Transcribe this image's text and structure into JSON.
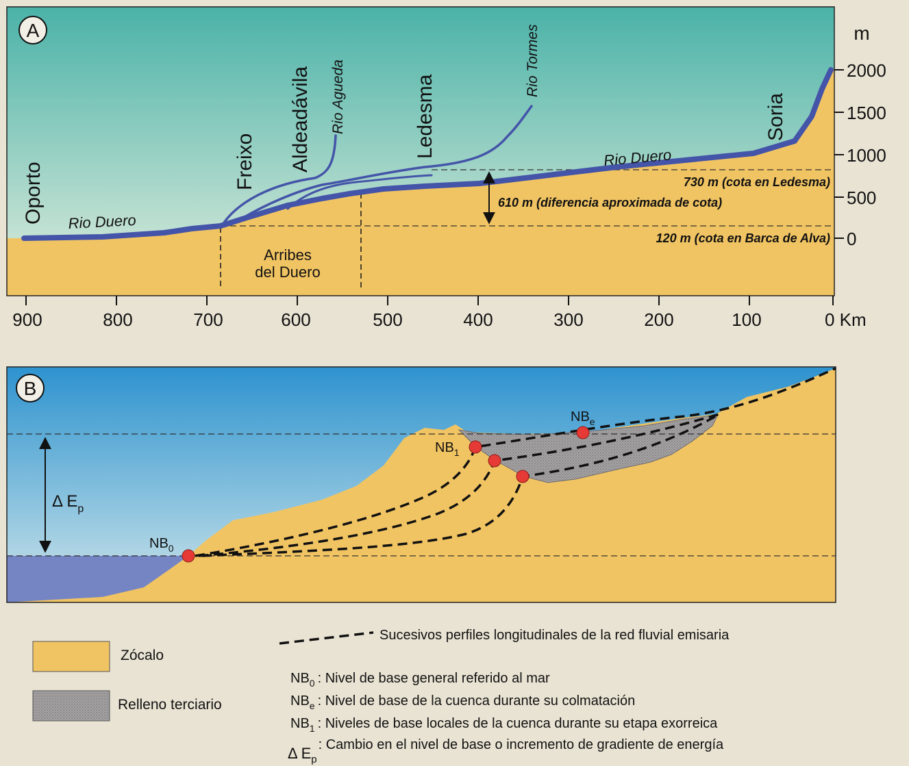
{
  "panel_a": {
    "label": "A",
    "unit": "m",
    "y_ticks": [
      "2000",
      "1500",
      "1000",
      "500",
      "0"
    ],
    "x_ticks": [
      "900",
      "800",
      "700",
      "600",
      "500",
      "400",
      "300",
      "200",
      "100",
      "0 Km"
    ],
    "places": {
      "oporto": "Oporto",
      "freixo": "Freixo",
      "aldeadavila": "Aldeadávila",
      "ledesma": "Ledesma",
      "soria": "Soria"
    },
    "rivers": {
      "duero_left": "Rio Duero",
      "duero_right": "Rio Duero",
      "agueda": "Rio Agueda",
      "tormes": "Rio Tormes"
    },
    "annotations": {
      "cota_ledesma": "730 m (cota en Ledesma)",
      "diferencia": "610 m (diferencia aproximada de cota)",
      "cota_barca": "120 m (cota en Barca de Alva)",
      "arribes_1": "Arribes",
      "arribes_2": "del Duero"
    }
  },
  "panel_b": {
    "label": "B",
    "delta": "Δ E",
    "delta_sub": "p",
    "nb0": "NB",
    "nb0_sub": "0",
    "nb1": "NB",
    "nb1_sub": "1",
    "nbe": "NB",
    "nbe_sub": "e"
  },
  "legend": {
    "zocalo": "Zócalo",
    "relleno": "Relleno terciario",
    "dashed": "Sucesivos perfiles longitudinales de la red fluvial emisaria",
    "nb0_sym": "NB",
    "nb0_sub": "0",
    "nb0_text": ": Nivel de base general referido al mar",
    "nbe_sym": "NB",
    "nbe_sub": "e",
    "nbe_text": ": Nivel de base de la cuenca durante su colmatación",
    "nb1_sym": "NB",
    "nb1_sub": "1",
    "nb1_text": ": Niveles de base locales de la cuenca durante su etapa exorreica",
    "dep_sym": "Δ E",
    "dep_sub": "p",
    "dep_text": ": Cambio en el nivel de base o incremento de gradiente de energía"
  },
  "colors": {
    "sky_a_top": "#4bb2a8",
    "sky_a_bottom": "#e2eede",
    "ground": "#f1c463",
    "river": "#4454a8",
    "sky_b_top": "#2e93cf",
    "sky_b_bottom": "#d0e6ea",
    "sea": "#7585c4",
    "fill_terciario": "#9e9b9e",
    "point": "#e53a35"
  }
}
